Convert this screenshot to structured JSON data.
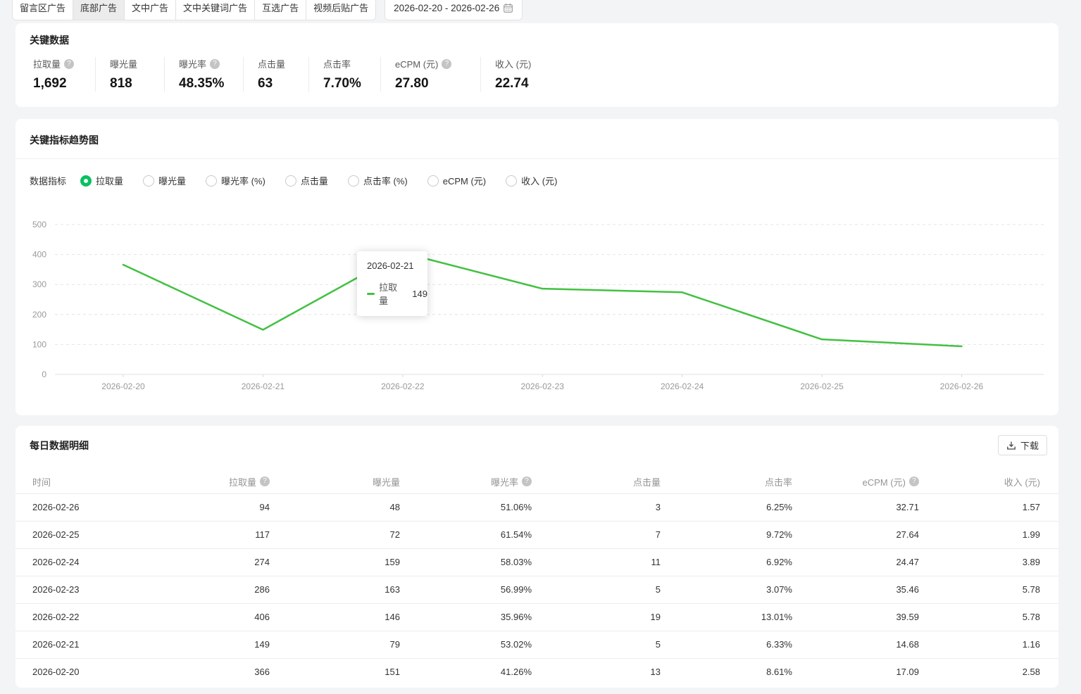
{
  "tabs": {
    "items": [
      {
        "label": "留言区广告"
      },
      {
        "label": "底部广告"
      },
      {
        "label": "文中广告"
      },
      {
        "label": "文中关键词广告"
      },
      {
        "label": "互选广告"
      },
      {
        "label": "视频后贴广告"
      }
    ],
    "selected_index": 1
  },
  "date_range": "2026-02-20 - 2026-02-26",
  "key_data": {
    "title": "关键数据",
    "metrics": [
      {
        "label": "拉取量",
        "value": "1,692",
        "help": true
      },
      {
        "label": "曝光量",
        "value": "818",
        "help": false
      },
      {
        "label": "曝光率",
        "value": "48.35%",
        "help": true
      },
      {
        "label": "点击量",
        "value": "63",
        "help": false
      },
      {
        "label": "点击率",
        "value": "7.70%",
        "help": false
      },
      {
        "label": "eCPM (元)",
        "value": "27.80",
        "help": true
      },
      {
        "label": "收入 (元)",
        "value": "22.74",
        "help": false
      }
    ]
  },
  "trend": {
    "title": "关键指标趋势图",
    "selector_label": "数据指标",
    "options": [
      {
        "label": "拉取量",
        "selected": true
      },
      {
        "label": "曝光量",
        "selected": false
      },
      {
        "label": "曝光率 (%)",
        "selected": false
      },
      {
        "label": "点击量",
        "selected": false
      },
      {
        "label": "点击率 (%)",
        "selected": false
      },
      {
        "label": "eCPM (元)",
        "selected": false
      },
      {
        "label": "收入 (元)",
        "selected": false
      }
    ],
    "tooltip": {
      "date": "2026-02-21",
      "series": "拉取量",
      "value": "149"
    }
  },
  "chart_data": {
    "type": "line",
    "title": "关键指标趋势图",
    "x": [
      "2026-02-20",
      "2026-02-21",
      "2026-02-22",
      "2026-02-23",
      "2026-02-24",
      "2026-02-25",
      "2026-02-26"
    ],
    "series": [
      {
        "name": "拉取量",
        "values": [
          366,
          149,
          406,
          286,
          274,
          117,
          94
        ],
        "color": "#42c142"
      }
    ],
    "xlabel": "",
    "ylabel": "",
    "ylim": [
      0,
      500
    ],
    "yticks": [
      0,
      100,
      200,
      300,
      400,
      500
    ],
    "grid": "horizontal-dashed",
    "legend": "none"
  },
  "daily": {
    "title": "每日数据明细",
    "download_label": "下载",
    "columns": [
      {
        "label": "时间",
        "help": false
      },
      {
        "label": "拉取量",
        "help": true
      },
      {
        "label": "曝光量",
        "help": false
      },
      {
        "label": "曝光率",
        "help": true
      },
      {
        "label": "点击量",
        "help": false
      },
      {
        "label": "点击率",
        "help": false
      },
      {
        "label": "eCPM (元)",
        "help": true
      },
      {
        "label": "收入 (元)",
        "help": false
      }
    ],
    "rows": [
      [
        "2026-02-26",
        "94",
        "48",
        "51.06%",
        "3",
        "6.25%",
        "32.71",
        "1.57"
      ],
      [
        "2026-02-25",
        "117",
        "72",
        "61.54%",
        "7",
        "9.72%",
        "27.64",
        "1.99"
      ],
      [
        "2026-02-24",
        "274",
        "159",
        "58.03%",
        "11",
        "6.92%",
        "24.47",
        "3.89"
      ],
      [
        "2026-02-23",
        "286",
        "163",
        "56.99%",
        "5",
        "3.07%",
        "35.46",
        "5.78"
      ],
      [
        "2026-02-22",
        "406",
        "146",
        "35.96%",
        "19",
        "13.01%",
        "39.59",
        "5.78"
      ],
      [
        "2026-02-21",
        "149",
        "79",
        "53.02%",
        "5",
        "6.33%",
        "14.68",
        "1.16"
      ],
      [
        "2026-02-20",
        "366",
        "151",
        "41.26%",
        "13",
        "8.61%",
        "17.09",
        "2.58"
      ]
    ]
  }
}
